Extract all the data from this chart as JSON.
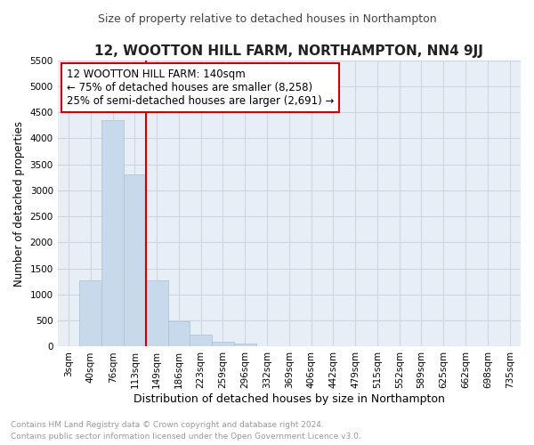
{
  "title": "12, WOOTTON HILL FARM, NORTHAMPTON, NN4 9JJ",
  "subtitle": "Size of property relative to detached houses in Northampton",
  "xlabel": "Distribution of detached houses by size in Northampton",
  "ylabel": "Number of detached properties",
  "footer_line1": "Contains HM Land Registry data © Crown copyright and database right 2024.",
  "footer_line2": "Contains public sector information licensed under the Open Government Licence v3.0.",
  "bar_color": "#c8d9ec",
  "bar_edge_color": "#a8c0d8",
  "bar_width": 1.0,
  "categories": [
    "3sqm",
    "40sqm",
    "76sqm",
    "113sqm",
    "149sqm",
    "186sqm",
    "223sqm",
    "259sqm",
    "296sqm",
    "332sqm",
    "369sqm",
    "406sqm",
    "442sqm",
    "479sqm",
    "515sqm",
    "552sqm",
    "589sqm",
    "625sqm",
    "662sqm",
    "698sqm",
    "735sqm"
  ],
  "values": [
    0,
    1275,
    4350,
    3300,
    1275,
    480,
    235,
    90,
    55,
    0,
    0,
    0,
    0,
    0,
    0,
    0,
    0,
    0,
    0,
    0,
    0
  ],
  "ylim": [
    0,
    5500
  ],
  "yticks": [
    0,
    500,
    1000,
    1500,
    2000,
    2500,
    3000,
    3500,
    4000,
    4500,
    5000,
    5500
  ],
  "property_line_x": 3.5,
  "annotation_text": "12 WOOTTON HILL FARM: 140sqm\n← 75% of detached houses are smaller (8,258)\n25% of semi-detached houses are larger (2,691) →",
  "annotation_box_color": "#cc0000",
  "grid_color": "#ccd5e3",
  "background_color": "#e8eef5",
  "title_fontsize": 11,
  "subtitle_fontsize": 9,
  "xlabel_fontsize": 9,
  "ylabel_fontsize": 8.5,
  "tick_fontsize": 7.5,
  "annotation_fontsize": 8.5,
  "footer_fontsize": 6.5,
  "footer_color": "#999999"
}
